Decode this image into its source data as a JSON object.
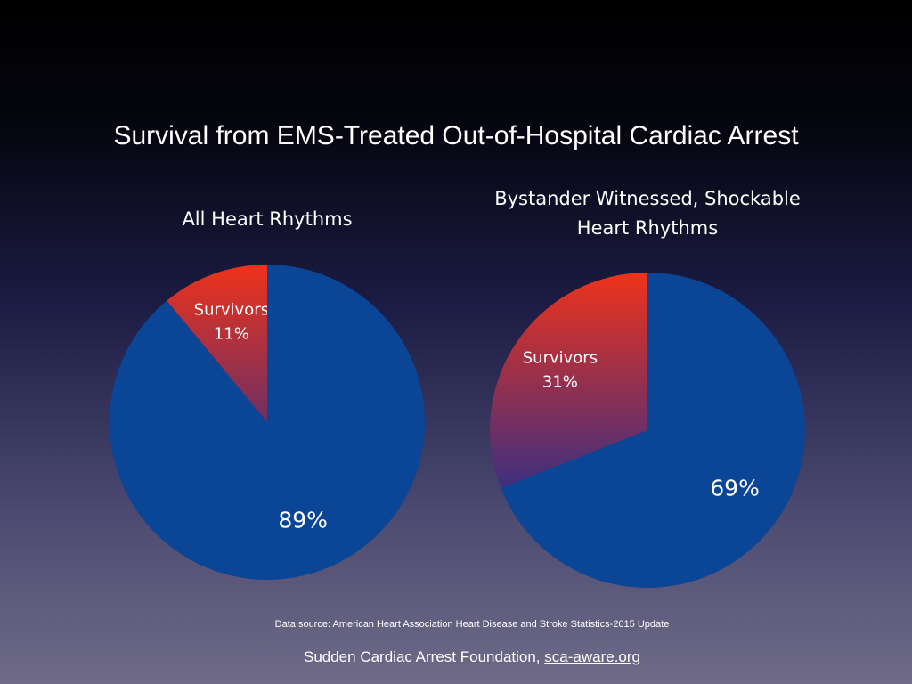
{
  "slide_title": "Survival from EMS-Treated Out-of-Hospital Cardiac Arrest",
  "chart_data": [
    {
      "type": "pie",
      "title": "All Heart Rhythms",
      "categories": [
        "Survivors",
        null
      ],
      "values": [
        11,
        89
      ],
      "value_labels": [
        "11%",
        "89%"
      ],
      "colors": [
        "#ee321a",
        "#0b4596"
      ]
    },
    {
      "type": "pie",
      "title": "Bystander Witnessed, Shockable Heart Rhythms",
      "categories": [
        "Survivors",
        null
      ],
      "values": [
        31,
        69
      ],
      "value_labels": [
        "31%",
        "69%"
      ],
      "colors": [
        "#ee321a",
        "#0b4596"
      ]
    }
  ],
  "footer": {
    "source": "Data source: American Heart Association Heart Disease and Stroke Statistics-2015 Update",
    "credit": "Sudden Cardiac Arrest Foundation,",
    "link": "sca-aware.org"
  }
}
